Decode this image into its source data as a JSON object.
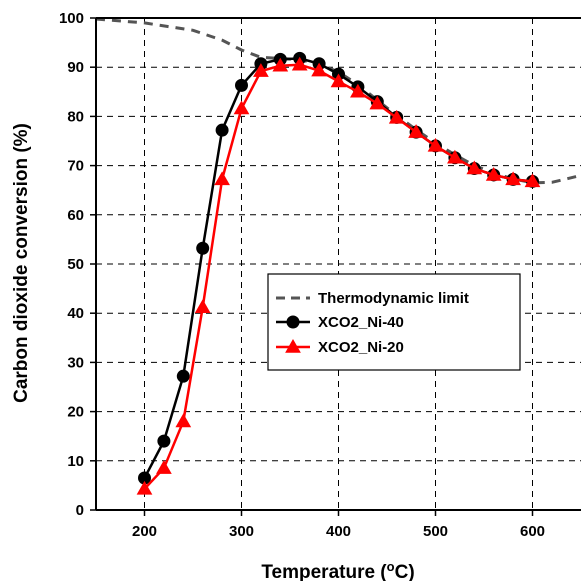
{
  "chart_data": {
    "type": "line",
    "xlabel": "Temperature (",
    "xlabel_sup": "o",
    "xlabel_tail": "C)",
    "ylabel": "Carbon dioxide conversion (%)",
    "xlim": [
      150,
      650
    ],
    "ylim": [
      0,
      100
    ],
    "x_ticks": [
      200,
      300,
      400,
      500,
      600
    ],
    "y_ticks": [
      0,
      10,
      20,
      30,
      40,
      50,
      60,
      70,
      80,
      90,
      100
    ],
    "grid": true,
    "legend_position": "center-right",
    "series": [
      {
        "name": "Thermodynamic limit",
        "color": "#555555",
        "style": "dashed",
        "marker": "none",
        "x": [
          150,
          200,
          250,
          280,
          300,
          320,
          340,
          360,
          380,
          400,
          420,
          440,
          460,
          480,
          500,
          520,
          540,
          560,
          580,
          600,
          620,
          650
        ],
        "y": [
          99.8,
          99,
          97.5,
          95.5,
          93.5,
          92,
          91.8,
          91.5,
          90.7,
          89,
          86.5,
          83.3,
          80.2,
          77.3,
          74.6,
          72.2,
          70,
          68.5,
          67.3,
          66.5,
          66.6,
          68
        ]
      },
      {
        "name": "XCO2_Ni-40",
        "color": "#000000",
        "style": "solid",
        "marker": "circle",
        "x": [
          200,
          220,
          240,
          260,
          280,
          300,
          320,
          340,
          360,
          380,
          400,
          420,
          440,
          460,
          480,
          500,
          520,
          540,
          560,
          580,
          600
        ],
        "y": [
          6.5,
          14,
          27.2,
          53.2,
          77.2,
          86.3,
          90.7,
          91.6,
          91.8,
          90.7,
          88.6,
          86,
          83,
          79.8,
          76.8,
          74,
          71.6,
          69.4,
          68.1,
          67.2,
          66.8
        ]
      },
      {
        "name": "XCO2_Ni-20",
        "color": "#ff0000",
        "style": "solid",
        "marker": "triangle",
        "x": [
          200,
          220,
          240,
          260,
          280,
          300,
          320,
          340,
          360,
          380,
          400,
          420,
          440,
          460,
          480,
          500,
          520,
          540,
          560,
          580,
          600
        ],
        "y": [
          4.3,
          8.5,
          18,
          41.2,
          67.2,
          81.6,
          89.2,
          90.3,
          90.5,
          89.3,
          87.1,
          85,
          82.6,
          79.7,
          76.8,
          74,
          71.6,
          69.4,
          68.1,
          67.2,
          66.8
        ]
      }
    ]
  }
}
